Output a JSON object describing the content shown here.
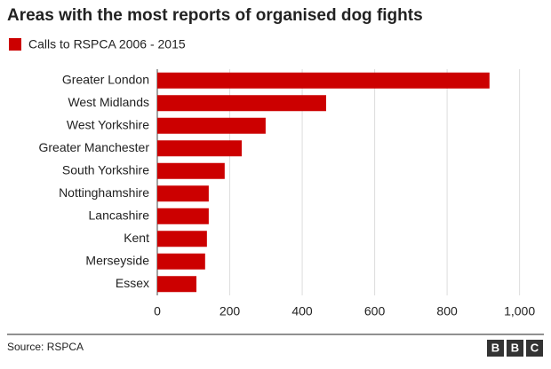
{
  "chart_data": {
    "type": "bar",
    "orientation": "horizontal",
    "title": "Areas with the most reports of organised dog fights",
    "categories": [
      "Greater London",
      "West Midlands",
      "West Yorkshire",
      "Greater Manchester",
      "South Yorkshire",
      "Nottinghamshire",
      "Lancashire",
      "Kent",
      "Merseyside",
      "Essex"
    ],
    "series": [
      {
        "name": "Calls to RSPCA 2006 - 2015",
        "color": "#cc0000",
        "values": [
          917,
          466,
          299,
          233,
          186,
          142,
          142,
          137,
          132,
          108
        ]
      }
    ],
    "xlim": [
      0,
      1050
    ],
    "xticks": [
      0,
      200,
      400,
      600,
      800,
      {
        "value": 1000,
        "label": "1,000"
      }
    ],
    "grid": true
  },
  "footer": {
    "source": "Source: RSPCA",
    "logo": [
      "B",
      "B",
      "C"
    ]
  }
}
